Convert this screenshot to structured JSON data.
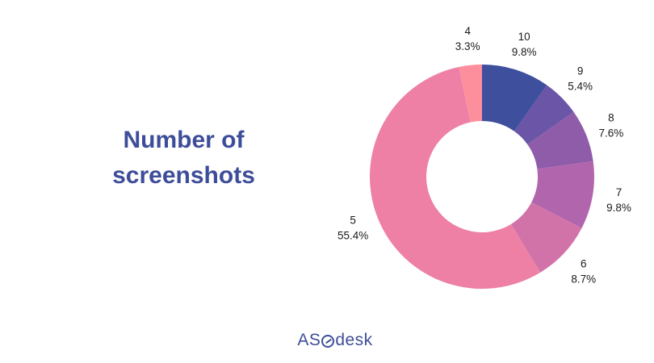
{
  "title_lines": [
    "Number of",
    "screenshots"
  ],
  "brand": {
    "left": "AS",
    "right": "desk"
  },
  "chart_data": {
    "type": "pie",
    "title": "Number of screenshots",
    "donut": true,
    "categories": [
      "10",
      "9",
      "8",
      "7",
      "6",
      "5",
      "4"
    ],
    "values": [
      9.8,
      5.4,
      7.6,
      9.8,
      8.7,
      55.4,
      3.3
    ],
    "value_labels": [
      "9.8%",
      "5.4%",
      "7.6%",
      "9.8%",
      "8.7%",
      "55.4%",
      "3.3%"
    ],
    "colors": [
      "#3d4f9d",
      "#6a55a6",
      "#8f5caa",
      "#b165ad",
      "#d173a8",
      "#ee80a6",
      "#fd8f9c"
    ],
    "start_angle_deg": 0,
    "direction": "clockwise"
  }
}
